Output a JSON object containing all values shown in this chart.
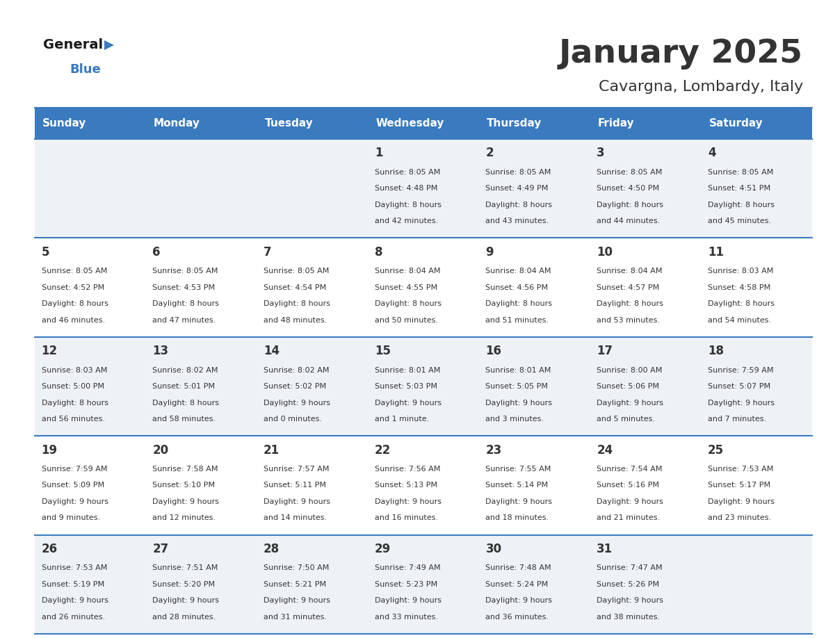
{
  "title": "January 2025",
  "subtitle": "Cavargna, Lombardy, Italy",
  "header_color": "#3a7abf",
  "header_text_color": "#ffffff",
  "cell_bg_even": "#eef2f7",
  "cell_bg_odd": "#ffffff",
  "day_names": [
    "Sunday",
    "Monday",
    "Tuesday",
    "Wednesday",
    "Thursday",
    "Friday",
    "Saturday"
  ],
  "text_color": "#333333",
  "line_color": "#3a7abf",
  "title_fontsize": 34,
  "subtitle_fontsize": 16,
  "header_fontsize": 11,
  "day_num_fontsize": 12,
  "cell_text_fontsize": 8,
  "days": [
    {
      "day": 1,
      "col": 3,
      "row": 0,
      "sunrise": "8:05 AM",
      "sunset": "4:48 PM",
      "daylight": "8 hours and 42 minutes."
    },
    {
      "day": 2,
      "col": 4,
      "row": 0,
      "sunrise": "8:05 AM",
      "sunset": "4:49 PM",
      "daylight": "8 hours and 43 minutes."
    },
    {
      "day": 3,
      "col": 5,
      "row": 0,
      "sunrise": "8:05 AM",
      "sunset": "4:50 PM",
      "daylight": "8 hours and 44 minutes."
    },
    {
      "day": 4,
      "col": 6,
      "row": 0,
      "sunrise": "8:05 AM",
      "sunset": "4:51 PM",
      "daylight": "8 hours and 45 minutes."
    },
    {
      "day": 5,
      "col": 0,
      "row": 1,
      "sunrise": "8:05 AM",
      "sunset": "4:52 PM",
      "daylight": "8 hours and 46 minutes."
    },
    {
      "day": 6,
      "col": 1,
      "row": 1,
      "sunrise": "8:05 AM",
      "sunset": "4:53 PM",
      "daylight": "8 hours and 47 minutes."
    },
    {
      "day": 7,
      "col": 2,
      "row": 1,
      "sunrise": "8:05 AM",
      "sunset": "4:54 PM",
      "daylight": "8 hours and 48 minutes."
    },
    {
      "day": 8,
      "col": 3,
      "row": 1,
      "sunrise": "8:04 AM",
      "sunset": "4:55 PM",
      "daylight": "8 hours and 50 minutes."
    },
    {
      "day": 9,
      "col": 4,
      "row": 1,
      "sunrise": "8:04 AM",
      "sunset": "4:56 PM",
      "daylight": "8 hours and 51 minutes."
    },
    {
      "day": 10,
      "col": 5,
      "row": 1,
      "sunrise": "8:04 AM",
      "sunset": "4:57 PM",
      "daylight": "8 hours and 53 minutes."
    },
    {
      "day": 11,
      "col": 6,
      "row": 1,
      "sunrise": "8:03 AM",
      "sunset": "4:58 PM",
      "daylight": "8 hours and 54 minutes."
    },
    {
      "day": 12,
      "col": 0,
      "row": 2,
      "sunrise": "8:03 AM",
      "sunset": "5:00 PM",
      "daylight": "8 hours and 56 minutes."
    },
    {
      "day": 13,
      "col": 1,
      "row": 2,
      "sunrise": "8:02 AM",
      "sunset": "5:01 PM",
      "daylight": "8 hours and 58 minutes."
    },
    {
      "day": 14,
      "col": 2,
      "row": 2,
      "sunrise": "8:02 AM",
      "sunset": "5:02 PM",
      "daylight": "9 hours and 0 minutes."
    },
    {
      "day": 15,
      "col": 3,
      "row": 2,
      "sunrise": "8:01 AM",
      "sunset": "5:03 PM",
      "daylight": "9 hours and 1 minute."
    },
    {
      "day": 16,
      "col": 4,
      "row": 2,
      "sunrise": "8:01 AM",
      "sunset": "5:05 PM",
      "daylight": "9 hours and 3 minutes."
    },
    {
      "day": 17,
      "col": 5,
      "row": 2,
      "sunrise": "8:00 AM",
      "sunset": "5:06 PM",
      "daylight": "9 hours and 5 minutes."
    },
    {
      "day": 18,
      "col": 6,
      "row": 2,
      "sunrise": "7:59 AM",
      "sunset": "5:07 PM",
      "daylight": "9 hours and 7 minutes."
    },
    {
      "day": 19,
      "col": 0,
      "row": 3,
      "sunrise": "7:59 AM",
      "sunset": "5:09 PM",
      "daylight": "9 hours and 9 minutes."
    },
    {
      "day": 20,
      "col": 1,
      "row": 3,
      "sunrise": "7:58 AM",
      "sunset": "5:10 PM",
      "daylight": "9 hours and 12 minutes."
    },
    {
      "day": 21,
      "col": 2,
      "row": 3,
      "sunrise": "7:57 AM",
      "sunset": "5:11 PM",
      "daylight": "9 hours and 14 minutes."
    },
    {
      "day": 22,
      "col": 3,
      "row": 3,
      "sunrise": "7:56 AM",
      "sunset": "5:13 PM",
      "daylight": "9 hours and 16 minutes."
    },
    {
      "day": 23,
      "col": 4,
      "row": 3,
      "sunrise": "7:55 AM",
      "sunset": "5:14 PM",
      "daylight": "9 hours and 18 minutes."
    },
    {
      "day": 24,
      "col": 5,
      "row": 3,
      "sunrise": "7:54 AM",
      "sunset": "5:16 PM",
      "daylight": "9 hours and 21 minutes."
    },
    {
      "day": 25,
      "col": 6,
      "row": 3,
      "sunrise": "7:53 AM",
      "sunset": "5:17 PM",
      "daylight": "9 hours and 23 minutes."
    },
    {
      "day": 26,
      "col": 0,
      "row": 4,
      "sunrise": "7:53 AM",
      "sunset": "5:19 PM",
      "daylight": "9 hours and 26 minutes."
    },
    {
      "day": 27,
      "col": 1,
      "row": 4,
      "sunrise": "7:51 AM",
      "sunset": "5:20 PM",
      "daylight": "9 hours and 28 minutes."
    },
    {
      "day": 28,
      "col": 2,
      "row": 4,
      "sunrise": "7:50 AM",
      "sunset": "5:21 PM",
      "daylight": "9 hours and 31 minutes."
    },
    {
      "day": 29,
      "col": 3,
      "row": 4,
      "sunrise": "7:49 AM",
      "sunset": "5:23 PM",
      "daylight": "9 hours and 33 minutes."
    },
    {
      "day": 30,
      "col": 4,
      "row": 4,
      "sunrise": "7:48 AM",
      "sunset": "5:24 PM",
      "daylight": "9 hours and 36 minutes."
    },
    {
      "day": 31,
      "col": 5,
      "row": 4,
      "sunrise": "7:47 AM",
      "sunset": "5:26 PM",
      "daylight": "9 hours and 38 minutes."
    }
  ]
}
